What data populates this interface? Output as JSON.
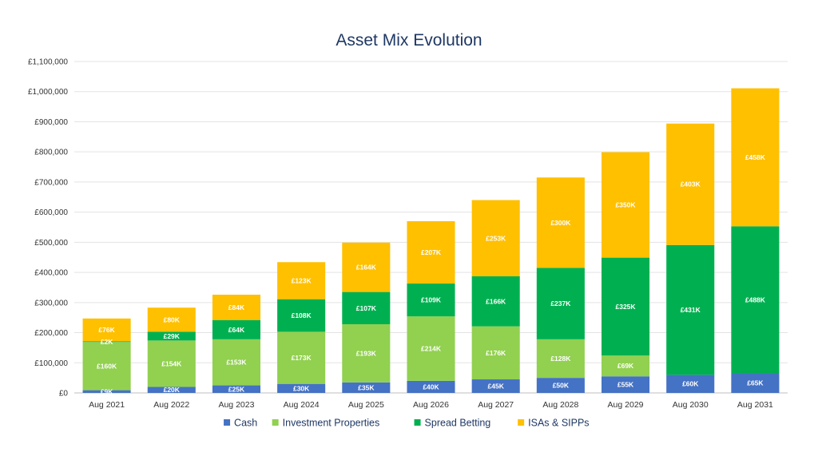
{
  "chart_data": {
    "type": "bar",
    "stacked": true,
    "title": "Asset Mix Evolution",
    "categories": [
      "Aug 2021",
      "Aug 2022",
      "Aug 2023",
      "Aug 2024",
      "Aug 2025",
      "Aug 2026",
      "Aug 2027",
      "Aug 2028",
      "Aug 2029",
      "Aug 2030",
      "Aug 2031"
    ],
    "ylim": [
      0,
      1100000
    ],
    "ytick_step": 100000,
    "ytick_labels": [
      "£0",
      "£100,000",
      "£200,000",
      "£300,000",
      "£400,000",
      "£500,000",
      "£600,000",
      "£700,000",
      "£800,000",
      "£900,000",
      "£1,000,000",
      "£1,100,000"
    ],
    "grid": true,
    "legend_position": "bottom",
    "series": [
      {
        "name": "Cash",
        "color": "#4472c4",
        "values": [
          9000,
          20000,
          25000,
          30000,
          35000,
          40000,
          45000,
          50000,
          55000,
          60000,
          65000
        ],
        "labels": [
          "£9K",
          "£20K",
          "£25K",
          "£30K",
          "£35K",
          "£40K",
          "£45K",
          "£50K",
          "£55K",
          "£60K",
          "£65K"
        ]
      },
      {
        "name": "Investment Properties",
        "color": "#92d050",
        "values": [
          160000,
          154000,
          153000,
          173000,
          193000,
          214000,
          176000,
          128000,
          69000,
          0,
          0
        ],
        "labels": [
          "£160K",
          "£154K",
          "£153K",
          "£173K",
          "£193K",
          "£214K",
          "£176K",
          "£128K",
          "£69K",
          "",
          ""
        ]
      },
      {
        "name": "Spread Betting",
        "color": "#00b050",
        "values": [
          2000,
          29000,
          64000,
          108000,
          107000,
          109000,
          166000,
          237000,
          325000,
          431000,
          488000
        ],
        "labels": [
          "£2K",
          "£29K",
          "£64K",
          "£108K",
          "£107K",
          "£109K",
          "£166K",
          "£237K",
          "£325K",
          "£431K",
          "£488K"
        ]
      },
      {
        "name": "ISAs & SIPPs",
        "color": "#ffc000",
        "values": [
          76000,
          80000,
          84000,
          123000,
          164000,
          207000,
          253000,
          300000,
          350000,
          403000,
          458000
        ],
        "labels": [
          "£76K",
          "£80K",
          "£84K",
          "£123K",
          "£164K",
          "£207K",
          "£253K",
          "£300K",
          "£350K",
          "£403K",
          "£458K"
        ]
      }
    ]
  }
}
